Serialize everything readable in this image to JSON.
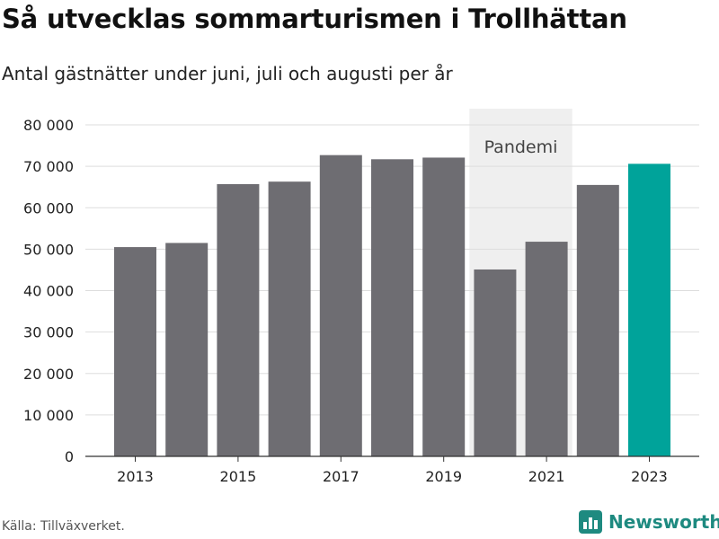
{
  "chart_data": {
    "type": "bar",
    "title": "Så utvecklas sommarturismen i Trollhättan",
    "subtitle": "Antal gästnätter under juni, juli och augusti per år",
    "categories": [
      "2013",
      "2014",
      "2015",
      "2016",
      "2017",
      "2018",
      "2019",
      "2020",
      "2021",
      "2022",
      "2023"
    ],
    "values": [
      50500,
      51500,
      65700,
      66300,
      72700,
      71700,
      72100,
      45100,
      51800,
      65500,
      70600
    ],
    "xticks": [
      "2013",
      "2015",
      "2017",
      "2019",
      "2021",
      "2023"
    ],
    "yticks": [
      0,
      10000,
      20000,
      30000,
      40000,
      50000,
      60000,
      70000,
      80000
    ],
    "ytick_labels": [
      "0",
      "10 000",
      "20 000",
      "30 000",
      "40 000",
      "50 000",
      "60 000",
      "70 000",
      "80 000"
    ],
    "ylim": [
      0,
      80000
    ],
    "grid": true,
    "bar_color": "#6e6d72",
    "highlight_color": "#00a39a",
    "highlight_index": 10,
    "annotation": {
      "label": "Pandemi",
      "range": [
        "2020",
        "2021"
      ],
      "color": "#efefef"
    }
  },
  "footer": {
    "source": "Källa: Tillväxverket.",
    "brand": "Newsworthy",
    "brand_icon": "bar-chart-icon",
    "brand_color": "#1e8a80"
  }
}
